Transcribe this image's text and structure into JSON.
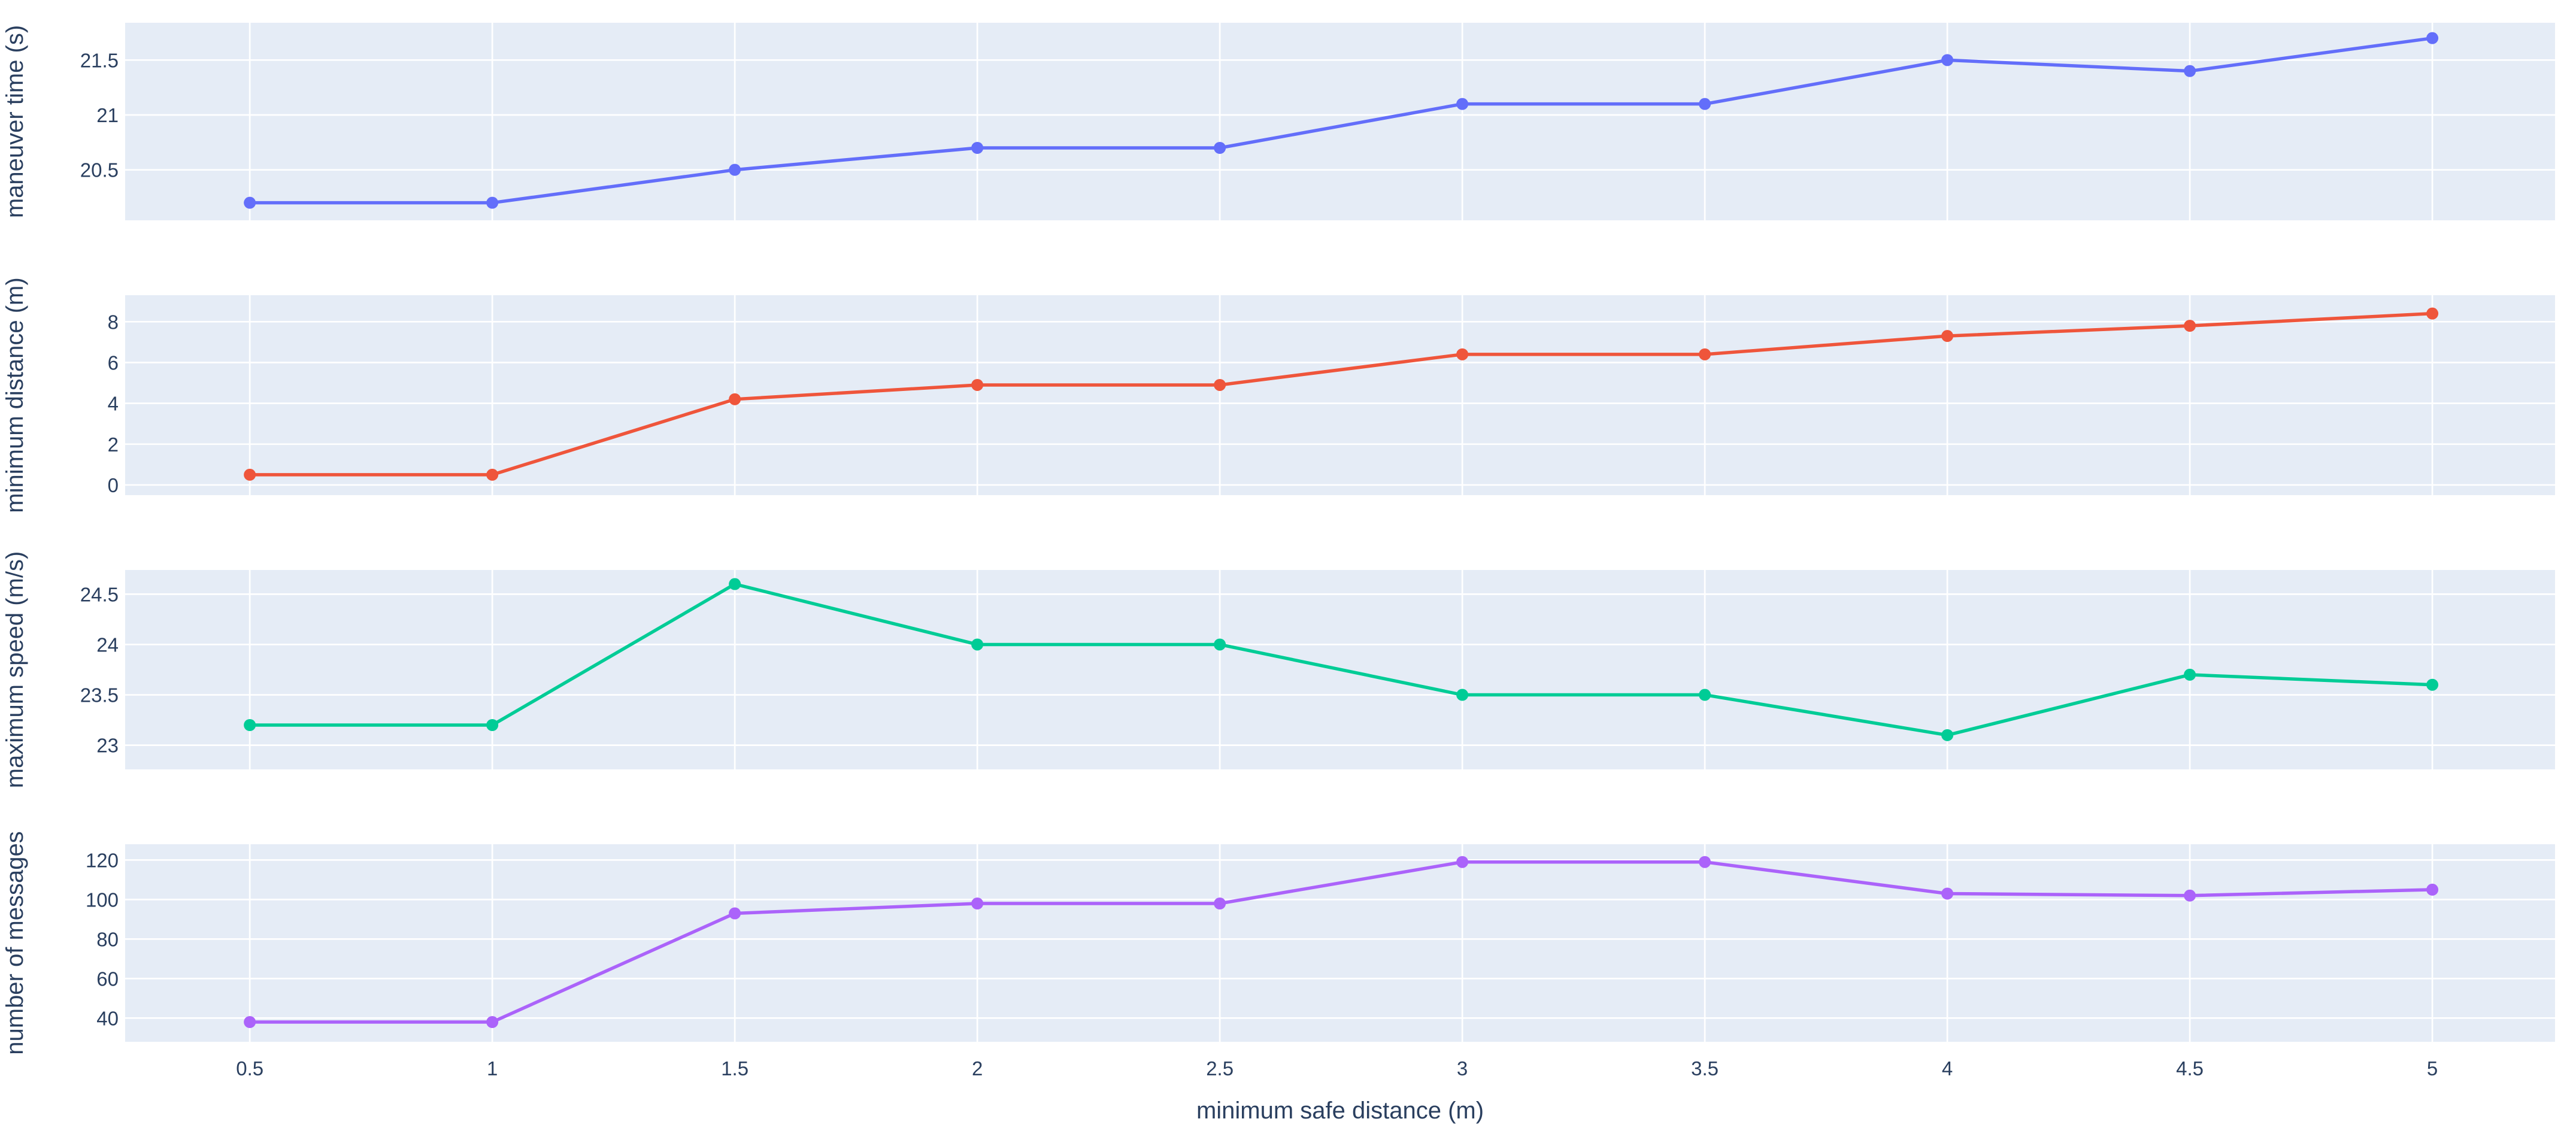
{
  "figure": {
    "background": "#ffffff",
    "plot_background": "#e5ecf6",
    "grid_color": "#ffffff",
    "text_color": "#2a3f5f"
  },
  "x_axis": {
    "title": "minimum safe distance (m)",
    "values": [
      0.5,
      1,
      1.5,
      2,
      2.5,
      3,
      3.5,
      4,
      4.5,
      5
    ],
    "ticks": [
      0.5,
      1,
      1.5,
      2,
      2.5,
      3,
      3.5,
      4,
      4.5,
      5
    ],
    "xlim": [
      0.243,
      5.253
    ],
    "grid": true
  },
  "chart_data": [
    {
      "type": "line",
      "ylabel": "maneuver time (s)",
      "color": "#636efa",
      "x": [
        0.5,
        1,
        1.5,
        2,
        2.5,
        3,
        3.5,
        4,
        4.5,
        5
      ],
      "values": [
        20.2,
        20.2,
        20.5,
        20.7,
        20.7,
        21.1,
        21.1,
        21.5,
        21.4,
        21.7
      ],
      "yticks": [
        20.5,
        21,
        21.5
      ],
      "ylim": [
        20.04,
        21.84
      ],
      "grid": true,
      "legend": "none",
      "markers": true
    },
    {
      "type": "line",
      "ylabel": "minimum distance (m)",
      "color": "#ef553b",
      "x": [
        0.5,
        1,
        1.5,
        2,
        2.5,
        3,
        3.5,
        4,
        4.5,
        5
      ],
      "values": [
        0.5,
        0.5,
        4.2,
        4.9,
        4.9,
        6.4,
        6.4,
        7.3,
        7.8,
        8.4
      ],
      "yticks": [
        0,
        2,
        4,
        6,
        8
      ],
      "ylim": [
        -0.5,
        9.3
      ],
      "grid": true,
      "legend": "none",
      "markers": true
    },
    {
      "type": "line",
      "ylabel": "maximum speed (m/s)",
      "color": "#00cc96",
      "x": [
        0.5,
        1,
        1.5,
        2,
        2.5,
        3,
        3.5,
        4,
        4.5,
        5
      ],
      "values": [
        23.2,
        23.2,
        24.6,
        24.0,
        24.0,
        23.5,
        23.5,
        23.1,
        23.7,
        23.6
      ],
      "yticks": [
        23,
        23.5,
        24,
        24.5
      ],
      "ylim": [
        22.76,
        24.74
      ],
      "grid": true,
      "legend": "none",
      "markers": true
    },
    {
      "type": "line",
      "ylabel": "number of messages",
      "color": "#ab63fa",
      "x": [
        0.5,
        1,
        1.5,
        2,
        2.5,
        3,
        3.5,
        4,
        4.5,
        5
      ],
      "values": [
        38,
        38,
        93,
        98,
        98,
        119,
        119,
        103,
        102,
        105
      ],
      "yticks": [
        40,
        60,
        80,
        100,
        120
      ],
      "ylim": [
        28,
        128
      ],
      "grid": true,
      "legend": "none",
      "markers": true
    }
  ]
}
